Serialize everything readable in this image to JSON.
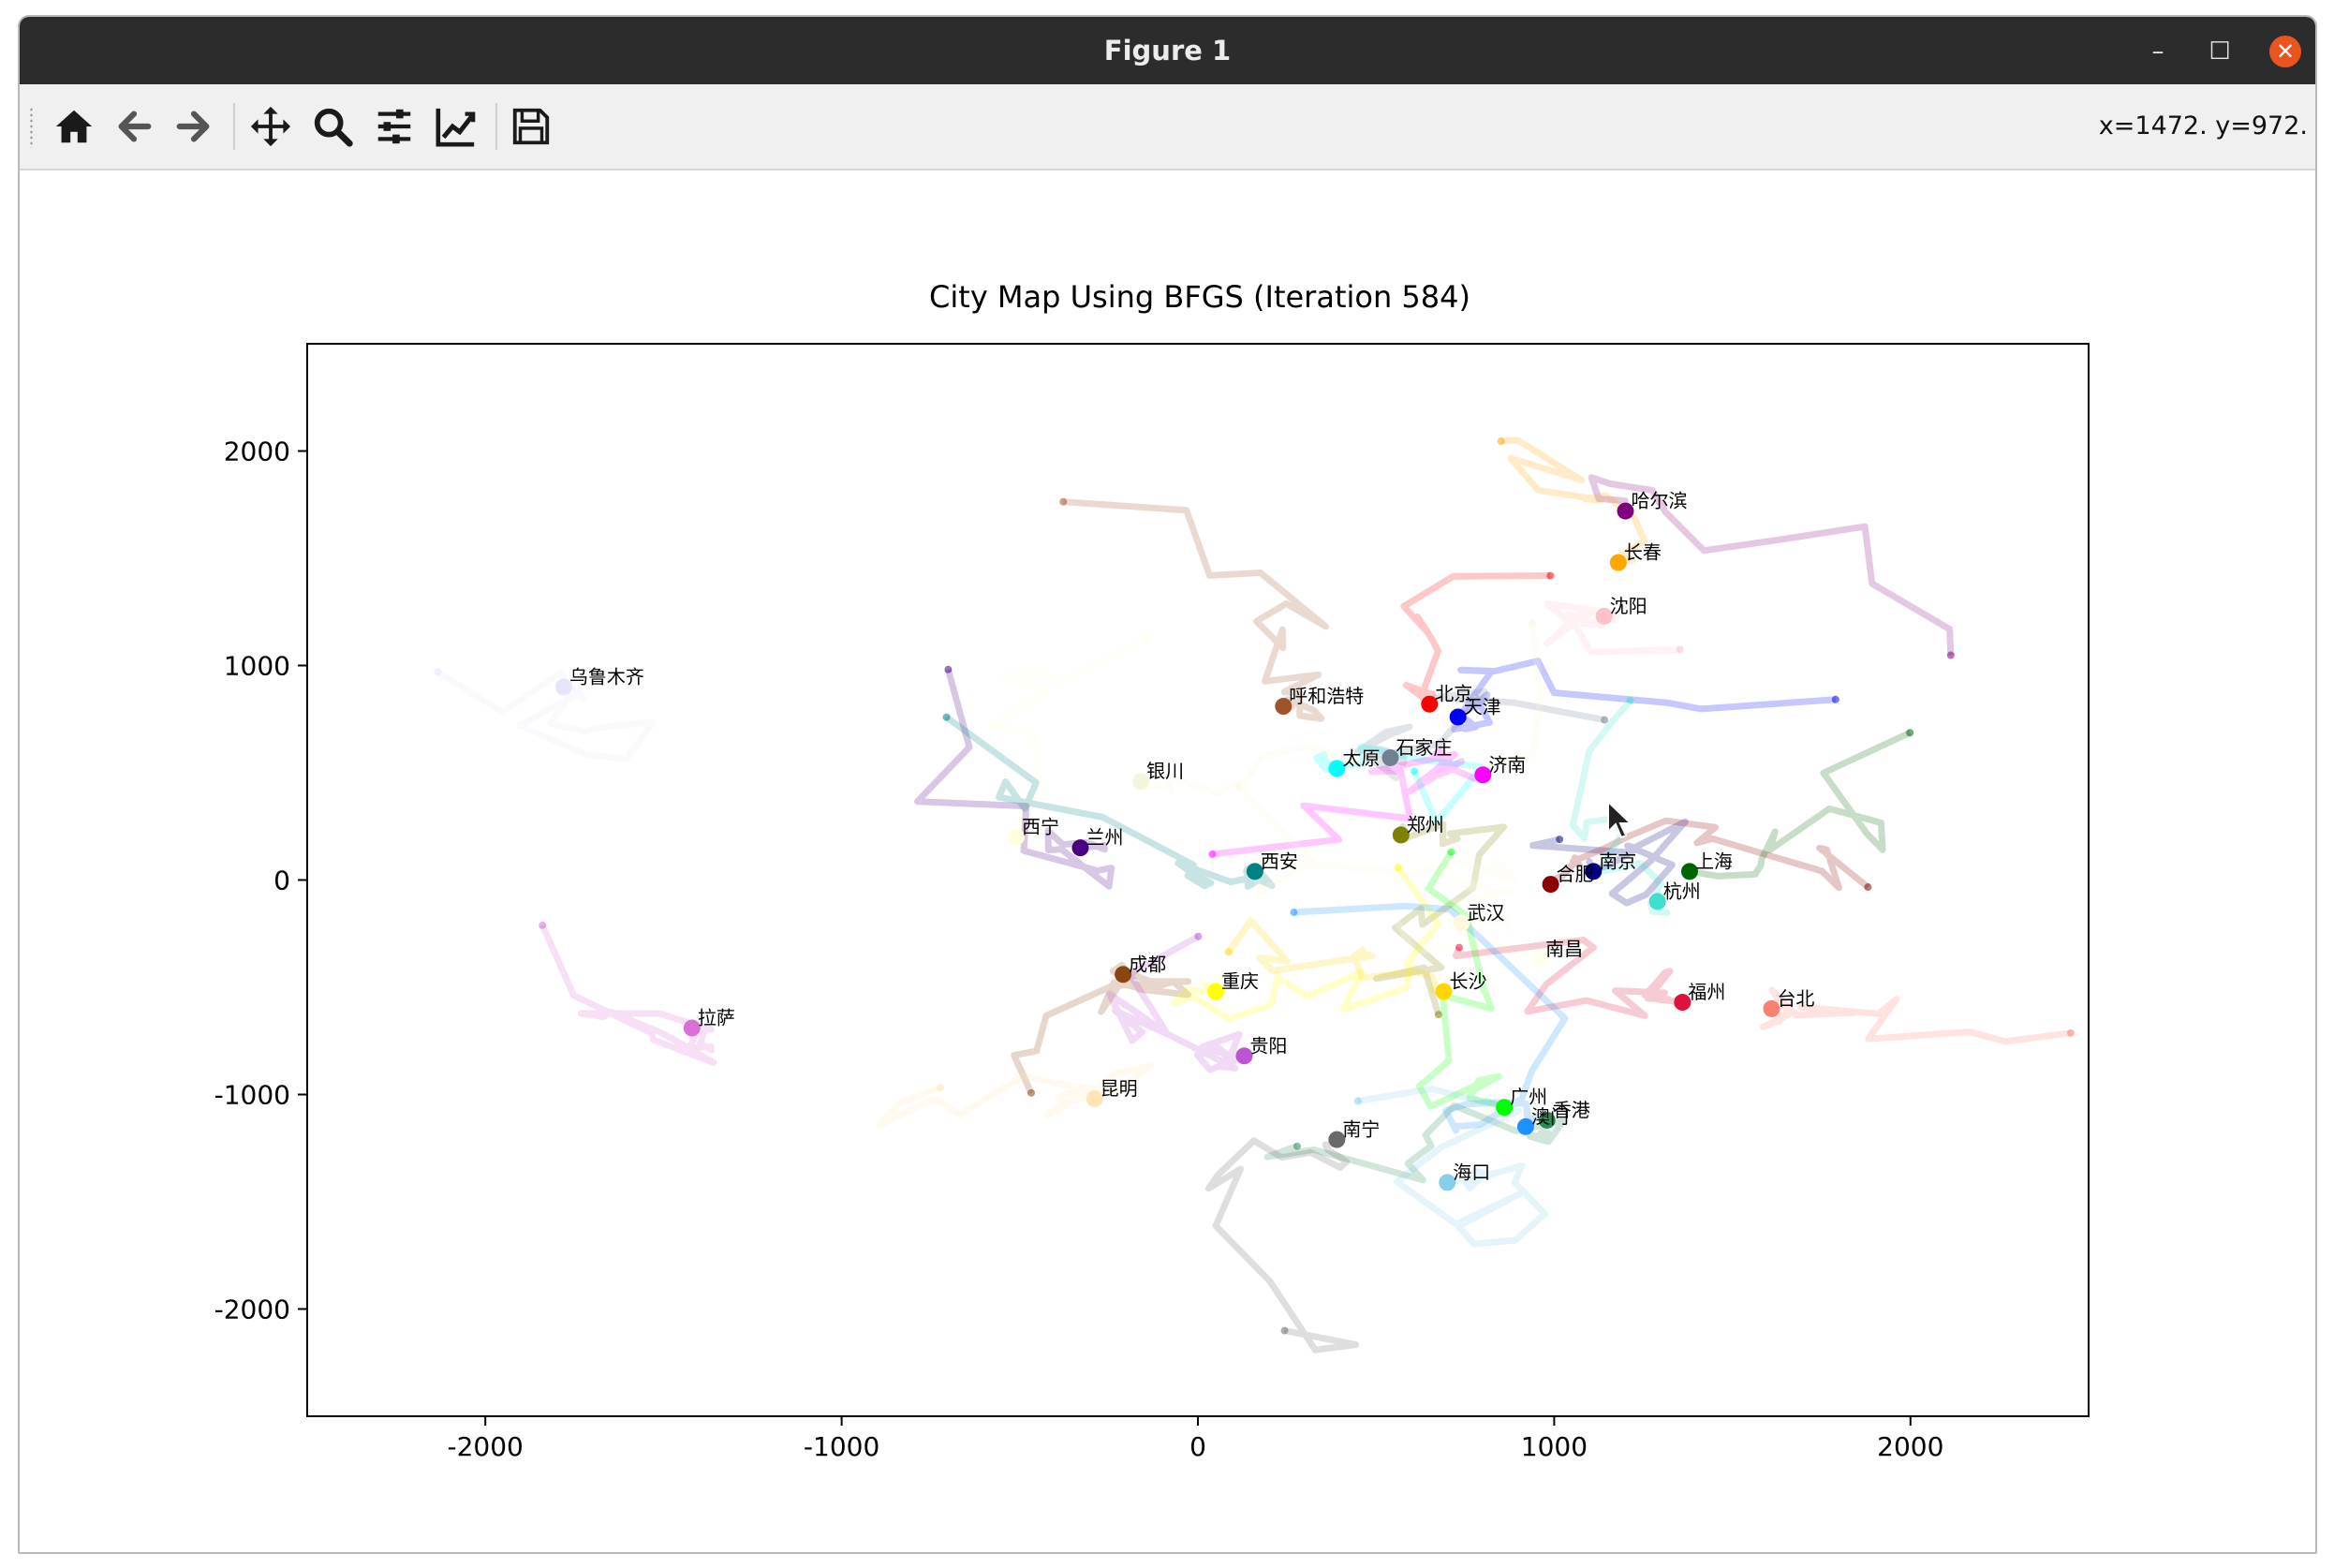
{
  "window": {
    "title": "Figure 1",
    "minimize_label": "–",
    "maximize_label": "☐",
    "close_label": "✕"
  },
  "toolbar": {
    "icons": [
      "home-icon",
      "back-arrow-icon",
      "forward-arrow-icon",
      "pan-icon",
      "zoom-icon",
      "configure-subplots-icon",
      "edit-axis-icon",
      "save-icon"
    ],
    "coords": "x=1472. y=972."
  },
  "colors": {
    "titlebar": "#2c2c2c",
    "close_button": "#e95420",
    "toolbar": "#f0f0f0"
  },
  "chart_data": {
    "type": "scatter",
    "title": "City Map Using BFGS (Iteration 584)",
    "xlabel": "",
    "ylabel": "",
    "xlim": [
      -2500,
      2500
    ],
    "ylim": [
      -2500,
      2500
    ],
    "xticks": [
      -2000,
      -1000,
      0,
      1000,
      2000
    ],
    "yticks": [
      -2000,
      -1000,
      0,
      1000,
      2000
    ],
    "grid": false,
    "legend": "none",
    "cities": [
      {
        "name": "哈尔滨",
        "x": 1200,
        "y": 1720,
        "color": "#800080"
      },
      {
        "name": "长春",
        "x": 1180,
        "y": 1480,
        "color": "#ffa500"
      },
      {
        "name": "沈阳",
        "x": 1140,
        "y": 1230,
        "color": "#ffc0cb"
      },
      {
        "name": "乌鲁木齐",
        "x": -1780,
        "y": 900,
        "color": "#e6e6fa"
      },
      {
        "name": "呼和浩特",
        "x": 240,
        "y": 810,
        "color": "#a0522d"
      },
      {
        "name": "北京",
        "x": 650,
        "y": 820,
        "color": "#ff0000"
      },
      {
        "name": "天津",
        "x": 730,
        "y": 760,
        "color": "#0000ff"
      },
      {
        "name": "石家庄",
        "x": 540,
        "y": 570,
        "color": "#708090"
      },
      {
        "name": "太原",
        "x": 390,
        "y": 520,
        "color": "#00ffff"
      },
      {
        "name": "济南",
        "x": 800,
        "y": 490,
        "color": "#ff00ff"
      },
      {
        "name": "银川",
        "x": -160,
        "y": 460,
        "color": "#f5f5dc"
      },
      {
        "name": "郑州",
        "x": 570,
        "y": 210,
        "color": "#808000"
      },
      {
        "name": "西宁",
        "x": -510,
        "y": 200,
        "color": "#ffffe0"
      },
      {
        "name": "兰州",
        "x": -330,
        "y": 150,
        "color": "#4b0082"
      },
      {
        "name": "西安",
        "x": 160,
        "y": 40,
        "color": "#008080"
      },
      {
        "name": "南京",
        "x": 1110,
        "y": 40,
        "color": "#000080"
      },
      {
        "name": "合肥",
        "x": 990,
        "y": -20,
        "color": "#8b0000"
      },
      {
        "name": "上海",
        "x": 1380,
        "y": 40,
        "color": "#006400"
      },
      {
        "name": "杭州",
        "x": 1290,
        "y": -100,
        "color": "#40e0d0"
      },
      {
        "name": "武汉",
        "x": 740,
        "y": -200,
        "color": "#fff8dc"
      },
      {
        "name": "南昌",
        "x": 960,
        "y": -370,
        "color": "#fffff0"
      },
      {
        "name": "成都",
        "x": -210,
        "y": -440,
        "color": "#8b4513"
      },
      {
        "name": "重庆",
        "x": 50,
        "y": -520,
        "color": "#ffff00"
      },
      {
        "name": "长沙",
        "x": 690,
        "y": -520,
        "color": "#ffd700"
      },
      {
        "name": "福州",
        "x": 1360,
        "y": -570,
        "color": "#dc143c"
      },
      {
        "name": "台北",
        "x": 1610,
        "y": -600,
        "color": "#fa8072"
      },
      {
        "name": "拉萨",
        "x": -1420,
        "y": -690,
        "color": "#da70d6"
      },
      {
        "name": "贵阳",
        "x": 130,
        "y": -820,
        "color": "#ba55d3"
      },
      {
        "name": "昆明",
        "x": -290,
        "y": -1020,
        "color": "#ffe4b5"
      },
      {
        "name": "广州",
        "x": 860,
        "y": -1060,
        "color": "#00ff00"
      },
      {
        "name": "香港",
        "x": 980,
        "y": -1120,
        "color": "#2e8b57"
      },
      {
        "name": "澳门",
        "x": 920,
        "y": -1150,
        "color": "#1e90ff"
      },
      {
        "name": "南宁",
        "x": 390,
        "y": -1210,
        "color": "#696969"
      },
      {
        "name": "海口",
        "x": 700,
        "y": -1410,
        "color": "#87ceeb"
      }
    ],
    "trails_note": "Semi-transparent colored optimization trails (one per city) are drawn behind the city markers."
  }
}
